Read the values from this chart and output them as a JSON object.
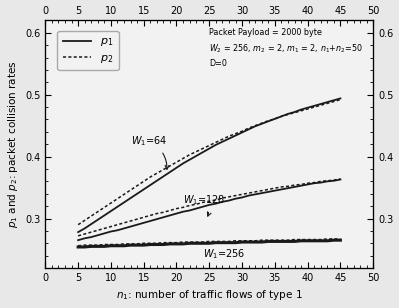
{
  "xlim": [
    0,
    50
  ],
  "ylim": [
    0.22,
    0.62
  ],
  "xticks": [
    0,
    5,
    10,
    15,
    20,
    25,
    30,
    35,
    40,
    45,
    50
  ],
  "yticks": [
    0.3,
    0.4,
    0.5,
    0.6
  ],
  "xlabel": "$n_1$: number of traffic flows of type 1",
  "ylabel": "$p_1$ and $p_2$: packet collision rates",
  "annotation_line1": "Packet Payload = 2000 byte",
  "annotation_line2": "$W_2$ = 256, $m_2$ = 2, $m_1$ = 2, $n_1$+$n_2$=50",
  "annotation_line3": "D=0",
  "legend_p1": "$p_1$",
  "legend_p2": "$p_2$",
  "label_W64": "$W_1$=64",
  "label_W128": "$W_1$=128",
  "label_W256": "$W_1$=256",
  "n1_values": [
    5,
    6,
    7,
    8,
    9,
    10,
    11,
    12,
    13,
    14,
    15,
    16,
    17,
    18,
    19,
    20,
    21,
    22,
    23,
    24,
    25,
    26,
    27,
    28,
    29,
    30,
    31,
    32,
    33,
    34,
    35,
    36,
    37,
    38,
    39,
    40,
    41,
    42,
    43,
    44,
    45
  ],
  "p1_W64": [
    0.278,
    0.284,
    0.291,
    0.298,
    0.305,
    0.312,
    0.319,
    0.326,
    0.333,
    0.34,
    0.347,
    0.354,
    0.361,
    0.368,
    0.375,
    0.382,
    0.389,
    0.395,
    0.401,
    0.407,
    0.413,
    0.419,
    0.424,
    0.429,
    0.434,
    0.439,
    0.444,
    0.449,
    0.453,
    0.457,
    0.461,
    0.465,
    0.469,
    0.472,
    0.476,
    0.479,
    0.482,
    0.485,
    0.488,
    0.491,
    0.494
  ],
  "p2_W64": [
    0.29,
    0.297,
    0.304,
    0.311,
    0.318,
    0.325,
    0.332,
    0.339,
    0.346,
    0.353,
    0.36,
    0.367,
    0.373,
    0.379,
    0.385,
    0.391,
    0.397,
    0.403,
    0.408,
    0.413,
    0.418,
    0.423,
    0.428,
    0.433,
    0.437,
    0.441,
    0.446,
    0.45,
    0.454,
    0.458,
    0.461,
    0.465,
    0.468,
    0.471,
    0.474,
    0.477,
    0.48,
    0.483,
    0.486,
    0.489,
    0.492
  ],
  "p1_W128": [
    0.265,
    0.268,
    0.27,
    0.273,
    0.276,
    0.279,
    0.281,
    0.284,
    0.287,
    0.29,
    0.293,
    0.296,
    0.299,
    0.302,
    0.305,
    0.308,
    0.311,
    0.313,
    0.316,
    0.319,
    0.322,
    0.324,
    0.327,
    0.329,
    0.332,
    0.334,
    0.337,
    0.339,
    0.341,
    0.343,
    0.345,
    0.347,
    0.349,
    0.351,
    0.353,
    0.355,
    0.357,
    0.358,
    0.36,
    0.361,
    0.363
  ],
  "p2_W128": [
    0.272,
    0.275,
    0.278,
    0.281,
    0.284,
    0.287,
    0.29,
    0.293,
    0.296,
    0.299,
    0.302,
    0.305,
    0.308,
    0.31,
    0.313,
    0.316,
    0.318,
    0.321,
    0.323,
    0.326,
    0.328,
    0.33,
    0.333,
    0.335,
    0.337,
    0.339,
    0.341,
    0.343,
    0.345,
    0.347,
    0.349,
    0.351,
    0.352,
    0.354,
    0.355,
    0.357,
    0.358,
    0.36,
    0.361,
    0.362,
    0.364
  ],
  "p1_W256": [
    0.254,
    0.254,
    0.255,
    0.255,
    0.255,
    0.256,
    0.256,
    0.256,
    0.257,
    0.257,
    0.257,
    0.258,
    0.258,
    0.258,
    0.259,
    0.259,
    0.259,
    0.26,
    0.26,
    0.26,
    0.26,
    0.261,
    0.261,
    0.261,
    0.261,
    0.262,
    0.262,
    0.262,
    0.262,
    0.263,
    0.263,
    0.263,
    0.263,
    0.263,
    0.264,
    0.264,
    0.264,
    0.264,
    0.264,
    0.265,
    0.265
  ],
  "p2_W256": [
    0.256,
    0.257,
    0.257,
    0.257,
    0.258,
    0.258,
    0.258,
    0.259,
    0.259,
    0.259,
    0.26,
    0.26,
    0.26,
    0.261,
    0.261,
    0.261,
    0.262,
    0.262,
    0.262,
    0.262,
    0.263,
    0.263,
    0.263,
    0.263,
    0.264,
    0.264,
    0.264,
    0.264,
    0.265,
    0.265,
    0.265,
    0.265,
    0.265,
    0.266,
    0.266,
    0.266,
    0.266,
    0.266,
    0.267,
    0.267,
    0.267
  ]
}
